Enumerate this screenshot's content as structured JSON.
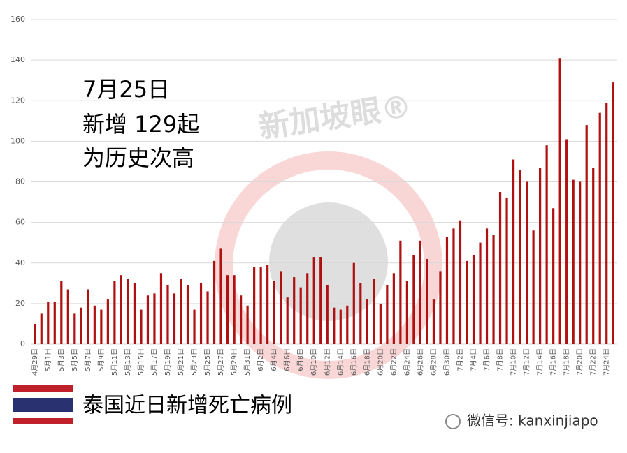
{
  "chart_data": {
    "type": "bar",
    "annotations": [
      "7月25日",
      "新增 129起",
      "为历史次高"
    ],
    "subtitle": "泰国近日新增死亡病例",
    "watermark": "新加坡眼®",
    "footer": "微信号: kanxinjiapo",
    "categories": [
      "4月29日",
      null,
      "5月1日",
      null,
      "5月3日",
      null,
      "5月5日",
      null,
      "5月7日",
      null,
      "5月9日",
      null,
      "5月11日",
      null,
      "5月13日",
      null,
      "5月15日",
      null,
      "5月17日",
      null,
      "5月19日",
      null,
      "5月21日",
      null,
      "5月23日",
      null,
      "5月25日",
      null,
      "5月27日",
      null,
      "5月29日",
      null,
      "5月31日",
      null,
      "6月2日",
      null,
      "6月4日",
      null,
      "6月6日",
      null,
      "6月8日",
      null,
      "6月10日",
      null,
      "6月12日",
      null,
      "6月14日",
      null,
      "6月16日",
      null,
      "6月18日",
      null,
      "6月20日",
      null,
      "6月22日",
      null,
      "6月24日",
      null,
      "6月26日",
      null,
      "6月28日",
      null,
      "6月30日",
      null,
      "7月2日",
      null,
      "7月4日",
      null,
      "7月6日",
      null,
      "7月8日",
      null,
      "7月10日",
      null,
      "7月12日",
      null,
      "7月14日",
      null,
      "7月16日",
      null,
      "7月18日",
      null,
      "7月20日",
      null,
      "7月22日",
      null,
      "7月24日",
      null
    ],
    "values": [
      10,
      15,
      21,
      21,
      31,
      27,
      15,
      18,
      27,
      19,
      17,
      22,
      31,
      34,
      32,
      30,
      17,
      24,
      25,
      35,
      29,
      25,
      32,
      29,
      17,
      30,
      26,
      41,
      47,
      34,
      34,
      24,
      19,
      38,
      38,
      39,
      31,
      36,
      23,
      33,
      28,
      35,
      43,
      43,
      29,
      18,
      17,
      19,
      40,
      30,
      22,
      32,
      20,
      29,
      35,
      51,
      31,
      44,
      51,
      42,
      22,
      36,
      53,
      57,
      61,
      41,
      44,
      50,
      57,
      54,
      75,
      72,
      91,
      86,
      80,
      56,
      87,
      98,
      67,
      141,
      101,
      81,
      80,
      108,
      87,
      114,
      119,
      129
    ],
    "color": "#b01010",
    "ylim": [
      0,
      160
    ],
    "yticks": [
      0,
      20,
      40,
      60,
      80,
      100,
      120,
      140,
      160
    ],
    "grid": true
  }
}
